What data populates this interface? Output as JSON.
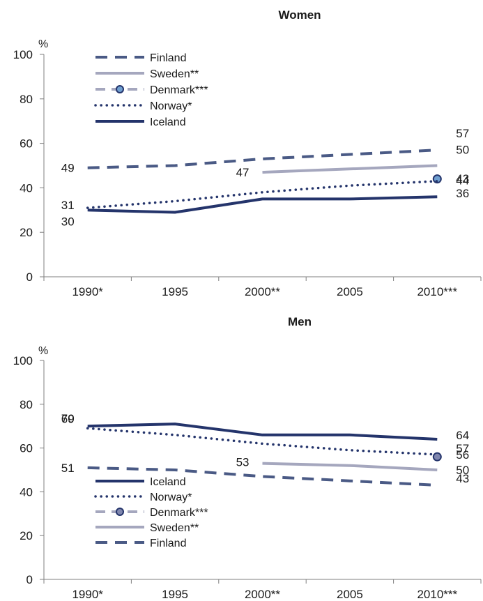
{
  "colors": {
    "finland": "#4a5a85",
    "sweden": "#a5a7be",
    "denmark_line": "#a5a7be",
    "denmark_marker_women": "#6f9fd0",
    "denmark_marker_men": "#7f86ae",
    "norway": "#24346b",
    "iceland": "#24346b"
  },
  "chart_data": [
    {
      "type": "line",
      "title": "Women",
      "ylabel": "%",
      "ylim": [
        0,
        100
      ],
      "yticks": [
        "0",
        "20",
        "40",
        "60",
        "80",
        "100"
      ],
      "categories": [
        "1990*",
        "1995",
        "2000**",
        "2005",
        "2010***"
      ],
      "legend_position": "top-left",
      "legend": [
        "Finland",
        "Sweden**",
        "Denmark***",
        "Norway*",
        "Iceland"
      ],
      "series": [
        {
          "name": "Finland",
          "values": [
            49,
            50,
            53,
            55,
            57
          ]
        },
        {
          "name": "Sweden**",
          "values": [
            null,
            null,
            47,
            48.5,
            50
          ]
        },
        {
          "name": "Denmark***",
          "values": [
            null,
            null,
            null,
            null,
            44
          ]
        },
        {
          "name": "Norway*",
          "values": [
            31,
            34,
            38,
            41,
            43
          ]
        },
        {
          "name": "Iceland",
          "values": [
            30,
            29,
            35,
            35,
            36
          ]
        }
      ],
      "data_labels": [
        "49",
        "31",
        "30",
        "47",
        "57",
        "50",
        "44",
        "43",
        "36"
      ]
    },
    {
      "type": "line",
      "title": "Men",
      "ylabel": "%",
      "ylim": [
        0,
        100
      ],
      "yticks": [
        "0",
        "20",
        "40",
        "60",
        "80",
        "100"
      ],
      "categories": [
        "1990*",
        "1995",
        "2000**",
        "2005",
        "2010***"
      ],
      "legend_position": "bottom-left",
      "legend": [
        "Iceland",
        "Norway*",
        "Denmark***",
        "Sweden**",
        "Finland"
      ],
      "series": [
        {
          "name": "Iceland",
          "values": [
            70,
            71,
            66,
            66,
            64
          ]
        },
        {
          "name": "Norway*",
          "values": [
            69,
            66,
            62,
            59,
            57
          ]
        },
        {
          "name": "Denmark***",
          "values": [
            null,
            null,
            null,
            null,
            56
          ]
        },
        {
          "name": "Sweden**",
          "values": [
            null,
            null,
            53,
            52,
            50
          ]
        },
        {
          "name": "Finland",
          "values": [
            51,
            50,
            47,
            45,
            43
          ]
        }
      ],
      "data_labels": [
        "70",
        "69",
        "51",
        "53",
        "64",
        "57",
        "56",
        "50",
        "43"
      ]
    }
  ]
}
